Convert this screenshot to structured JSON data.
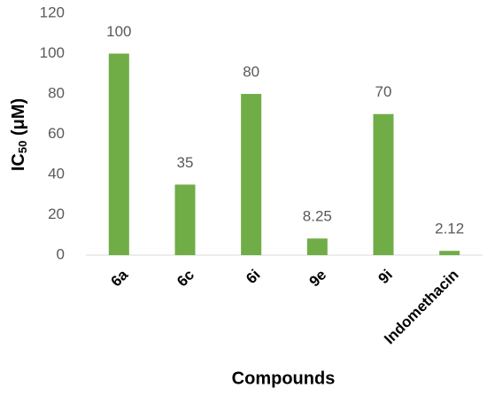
{
  "chart_data": {
    "type": "bar",
    "x_label": "Compounds",
    "y_label": {
      "main": "IC",
      "subscript": "50",
      "unit": " (μM)"
    },
    "categories": [
      "6a",
      "6c",
      "6i",
      "9e",
      "9i",
      "Indomethacin"
    ],
    "values": [
      100,
      35,
      80,
      8.25,
      70,
      2.12
    ],
    "color": "#70ad47",
    "ylim": [
      0,
      120
    ],
    "yticks": [
      0,
      20,
      40,
      60,
      80,
      100,
      120
    ],
    "grid": false
  }
}
